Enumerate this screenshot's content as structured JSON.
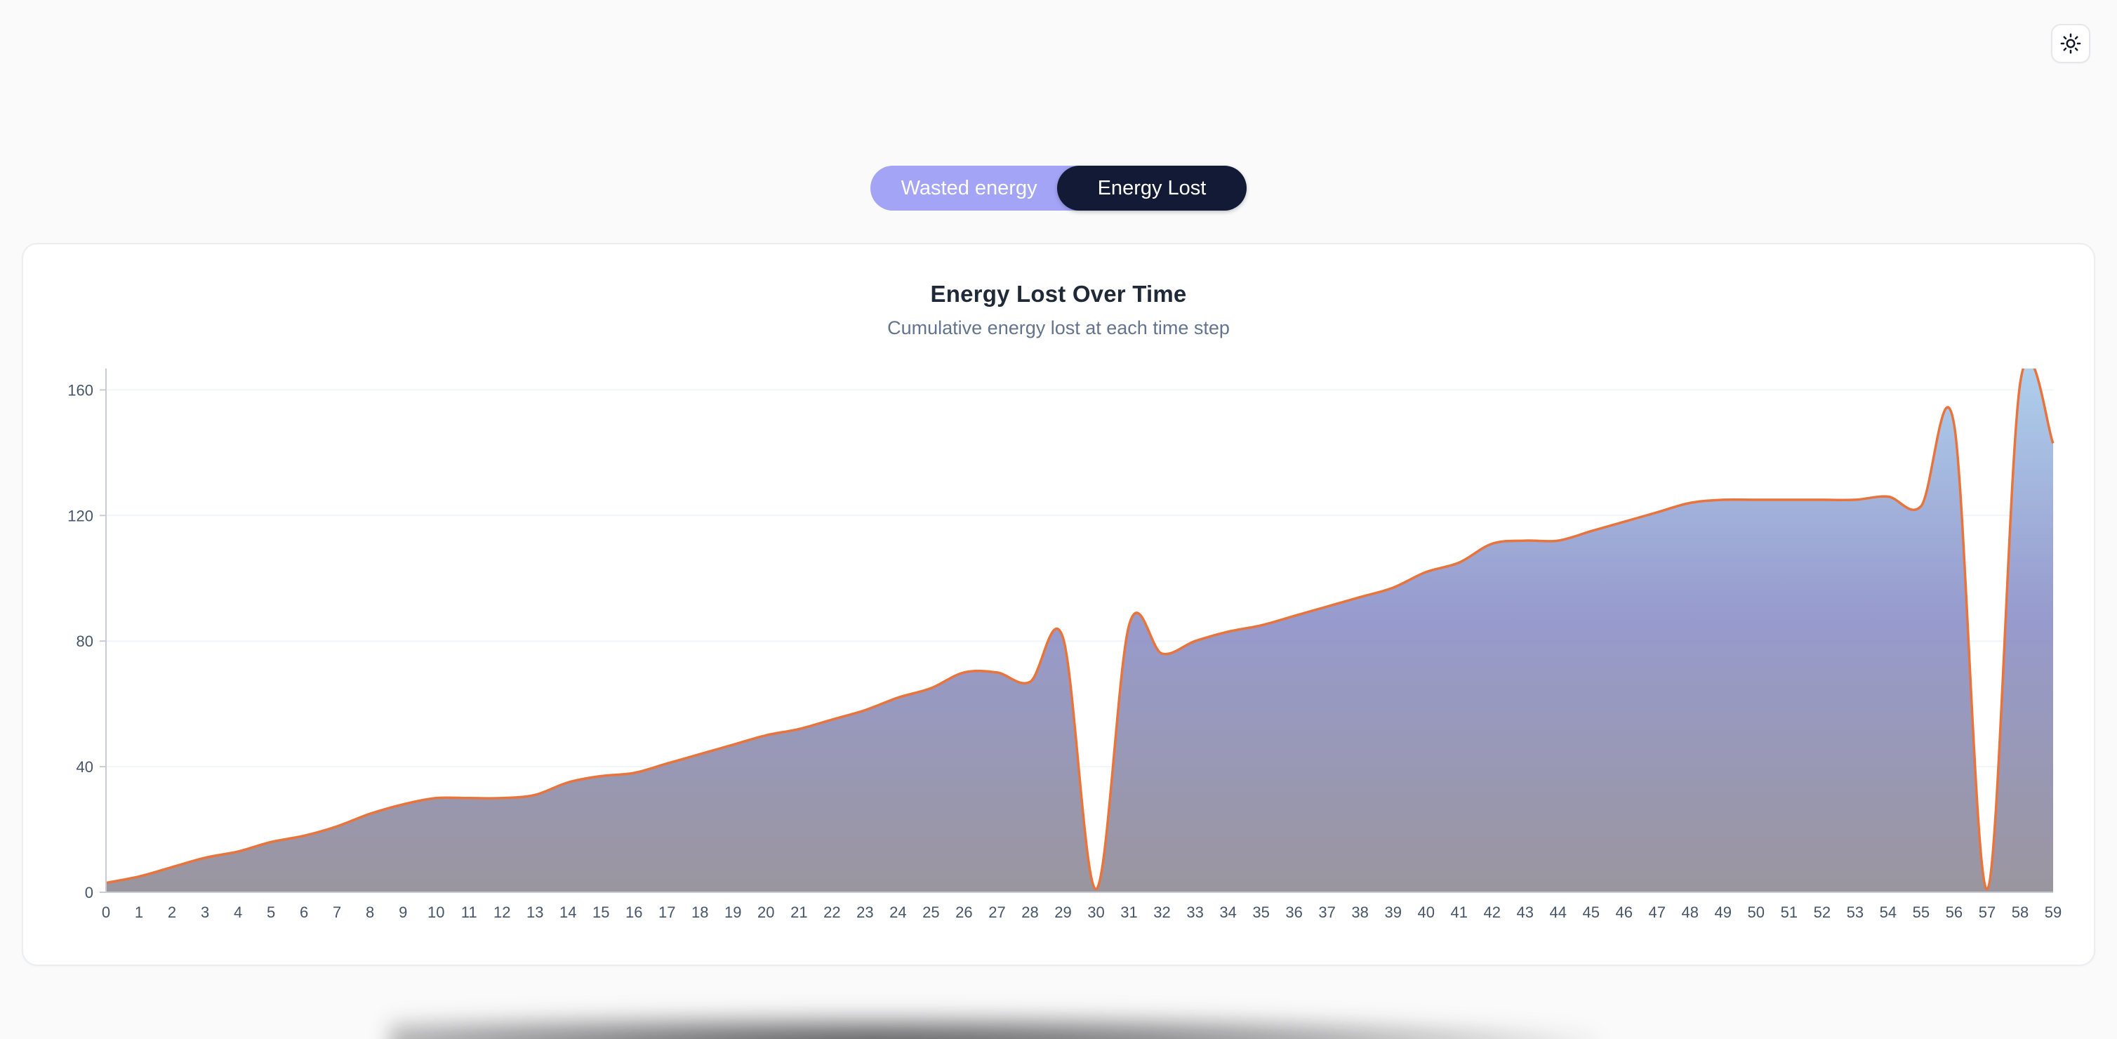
{
  "theme": {
    "page_bg": "#fafafa",
    "card_bg": "#ffffff",
    "accent_periwinkle": "#a3a4f5",
    "accent_dark_navy": "#131a36",
    "line_color": "#e8743c",
    "subtitle_color": "#64748b"
  },
  "header": {
    "theme_toggle_icon": "sun-icon"
  },
  "tabs": [
    {
      "label": "Wasted energy",
      "active": false
    },
    {
      "label": "Energy Lost",
      "active": true
    }
  ],
  "card": {
    "title": "Energy Lost Over Time",
    "subtitle": "Cumulative energy lost at each time step"
  },
  "chart_data": {
    "type": "area",
    "title": "Energy Lost Over Time",
    "subtitle": "Cumulative energy lost at each time step",
    "xlabel": "",
    "ylabel": "",
    "x": [
      0,
      1,
      2,
      3,
      4,
      5,
      6,
      7,
      8,
      9,
      10,
      11,
      12,
      13,
      14,
      15,
      16,
      17,
      18,
      19,
      20,
      21,
      22,
      23,
      24,
      25,
      26,
      27,
      28,
      29,
      30,
      31,
      32,
      33,
      34,
      35,
      36,
      37,
      38,
      39,
      40,
      41,
      42,
      43,
      44,
      45,
      46,
      47,
      48,
      49,
      50,
      51,
      52,
      53,
      54,
      55,
      56,
      57,
      58,
      59
    ],
    "values": [
      3,
      5,
      8,
      11,
      13,
      16,
      18,
      21,
      25,
      28,
      30,
      30,
      30,
      31,
      35,
      37,
      38,
      41,
      44,
      47,
      50,
      52,
      55,
      58,
      62,
      65,
      70,
      70,
      67,
      81,
      1,
      85,
      76,
      80,
      83,
      85,
      88,
      91,
      94,
      97,
      102,
      105,
      111,
      112,
      112,
      115,
      118,
      121,
      124,
      125,
      125,
      125,
      125,
      125,
      126,
      123,
      149,
      1,
      162,
      143
    ],
    "ylim": [
      0,
      165
    ],
    "yticks": [
      0,
      40,
      80,
      120,
      160
    ],
    "grid": true,
    "legend": "none",
    "line_color": "#e8743c",
    "fill_gradient_top": "#abceec",
    "fill_gradient_mid": "#8e92c9",
    "fill_gradient_bottom": "#95909a"
  }
}
